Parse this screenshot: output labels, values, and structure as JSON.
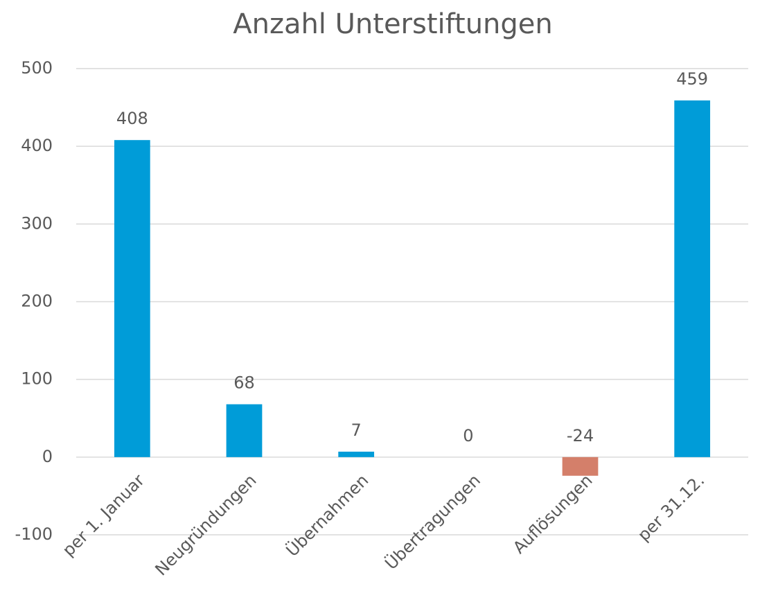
{
  "chart_data": {
    "type": "bar",
    "title": "Anzahl Unterstiftungen",
    "categories": [
      "per 1. Januar",
      "Neugründungen",
      "Übernahmen",
      "Übertragungen",
      "Auflösungen",
      "per 31.12."
    ],
    "values": [
      408,
      68,
      7,
      0,
      -24,
      459
    ],
    "colors": [
      "#009cd8",
      "#009cd8",
      "#009cd8",
      "#009cd8",
      "#d47f6a",
      "#009cd8"
    ],
    "ylim": [
      -100,
      500
    ],
    "yticks": [
      -100,
      0,
      100,
      200,
      300,
      400,
      500
    ],
    "grid": true
  }
}
